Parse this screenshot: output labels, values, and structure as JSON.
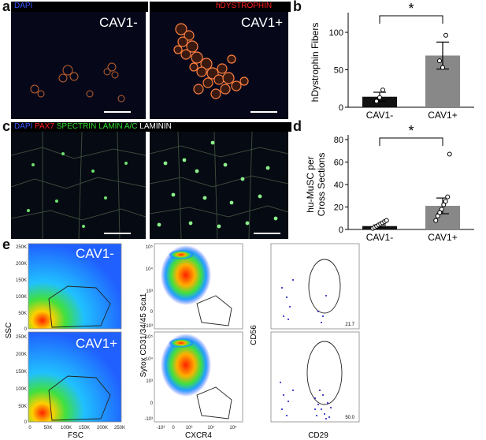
{
  "panels": {
    "a": {
      "letter": "a",
      "stain_left": "DAPI",
      "stain_right": "hDYSTROPHIN",
      "stain_left_color": "#3a55ff",
      "stain_right_color": "#ff2020",
      "left_label": "CAV1-",
      "right_label": "CAV1+"
    },
    "c": {
      "letter": "c",
      "stains": [
        {
          "text": "DAPI",
          "color": "#3a55ff"
        },
        {
          "text": " PAX7",
          "color": "#ff2020"
        },
        {
          "text": " SPECTRIN LAMIN A/C",
          "color": "#33dd33"
        },
        {
          "text": " LAMININ",
          "color": "#ffffff"
        }
      ]
    },
    "e": {
      "letter": "e",
      "fsc_panels": [
        {
          "label": "CAV1-"
        },
        {
          "label": "CAV1+"
        }
      ],
      "ssc_label": "SSC",
      "fsc_label": "FSC",
      "ssc_ticks": [
        "250K",
        "200K",
        "150K",
        "100K",
        "50K",
        "0"
      ],
      "fsc_ticks": [
        "0",
        "50K",
        "100K",
        "150K",
        "200K",
        "250K"
      ],
      "sytox_label": "Sytox CD31/34/45 Sca1",
      "cxcr4_label": "CXCR4",
      "log_ticks": [
        "10⁵",
        "10⁴",
        "10³",
        "0",
        "-10³"
      ],
      "log_ticks_x": [
        "-10³",
        "0",
        "10³",
        "10⁴",
        "10⁵"
      ],
      "cd56_label": "CD56",
      "cd29_label": "CD29",
      "gate_values": [
        "21.7",
        "50.0"
      ]
    }
  },
  "chart_data": [
    {
      "panel": "b",
      "type": "bar",
      "categories": [
        "CAV1-",
        "CAV1+"
      ],
      "values": [
        14,
        69
      ],
      "errors": [
        6,
        18
      ],
      "points": [
        [
          8,
          13,
          23
        ],
        [
          62,
          53,
          96
        ]
      ],
      "colors": [
        "#111111",
        "#888888"
      ],
      "ylabel": "hDystrophin Fibers",
      "ylim": [
        0,
        120
      ],
      "yticks": [
        0,
        50,
        100
      ],
      "significance": "*"
    },
    {
      "panel": "d",
      "type": "bar",
      "categories": [
        "CAV1-",
        "CAV1+"
      ],
      "values": [
        3,
        21
      ],
      "errors": [
        1,
        7
      ],
      "points": [
        [
          1,
          2,
          3,
          4,
          5,
          6,
          7,
          8
        ],
        [
          8,
          12,
          15,
          18,
          22,
          25,
          29,
          67
        ]
      ],
      "colors": [
        "#111111",
        "#888888"
      ],
      "ylabel": "hu-MuSC per Cross Sections",
      "ylim": [
        0,
        80
      ],
      "yticks": [
        0,
        20,
        40,
        60,
        80
      ],
      "significance": "*"
    }
  ]
}
